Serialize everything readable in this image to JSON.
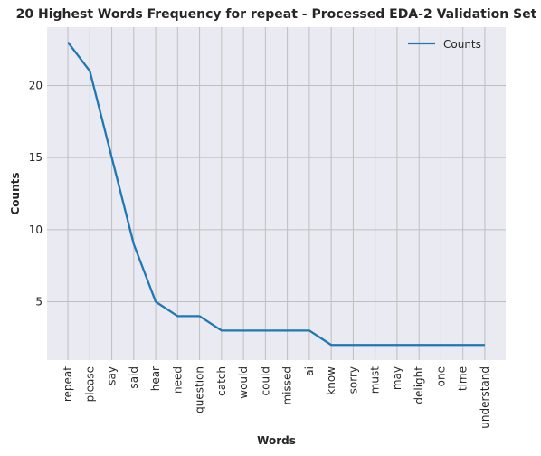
{
  "chart_data": {
    "type": "line",
    "title": "20 Highest Words Frequency for repeat - Processed EDA-2 Validation Set",
    "xlabel": "Words",
    "ylabel": "Counts",
    "categories": [
      "repeat",
      "please",
      "say",
      "said",
      "hear",
      "need",
      "question",
      "catch",
      "would",
      "could",
      "missed",
      "ai",
      "know",
      "sorry",
      "must",
      "may",
      "delight",
      "one",
      "time",
      "understand"
    ],
    "series": [
      {
        "name": "Counts",
        "values": [
          23,
          21,
          15,
          9,
          5,
          4,
          4,
          3,
          3,
          3,
          3,
          3,
          2,
          2,
          2,
          2,
          2,
          2,
          2,
          2
        ],
        "color": "#1f77b4"
      }
    ],
    "ylim": [
      0.95,
      24.05
    ],
    "yticks": [
      5,
      10,
      15,
      20
    ],
    "grid": true,
    "legend_position": "top-right",
    "background_color": "#eaeaf2",
    "grid_color": "#bfbfbf"
  }
}
